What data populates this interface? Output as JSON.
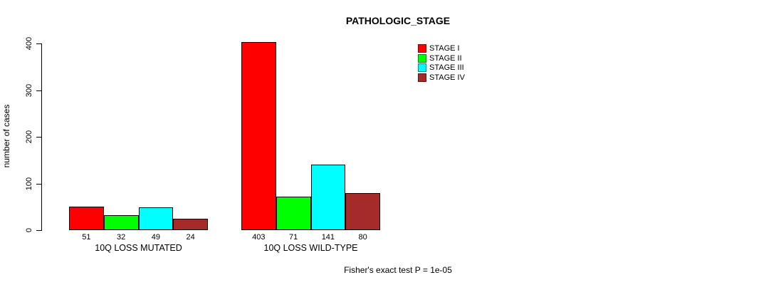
{
  "chart_data": {
    "type": "bar",
    "title": "PATHOLOGIC_STAGE",
    "xlabel": "",
    "ylabel": "number of cases",
    "ylim": [
      0,
      400
    ],
    "yticks": [
      0,
      100,
      200,
      300,
      400
    ],
    "grid": false,
    "legend_position": "top-right",
    "categories": [
      "10Q LOSS MUTATED",
      "10Q LOSS WILD-TYPE"
    ],
    "series": [
      {
        "name": "STAGE I",
        "color": "#FF0000",
        "values": [
          51,
          403
        ]
      },
      {
        "name": "STAGE II",
        "color": "#00FF00",
        "values": [
          32,
          71
        ]
      },
      {
        "name": "STAGE III",
        "color": "#00FFFF",
        "values": [
          49,
          141
        ]
      },
      {
        "name": "STAGE IV",
        "color": "#A52A2A",
        "values": [
          24,
          80
        ]
      }
    ],
    "bar_value_labels": [
      [
        51,
        32,
        49,
        24
      ],
      [
        403,
        71,
        141,
        80
      ]
    ],
    "annotation": "Fisher's exact test P = 1e-05"
  },
  "colors": {
    "background": "#FFFFFF",
    "axis": "#000000",
    "text": "#000000"
  }
}
